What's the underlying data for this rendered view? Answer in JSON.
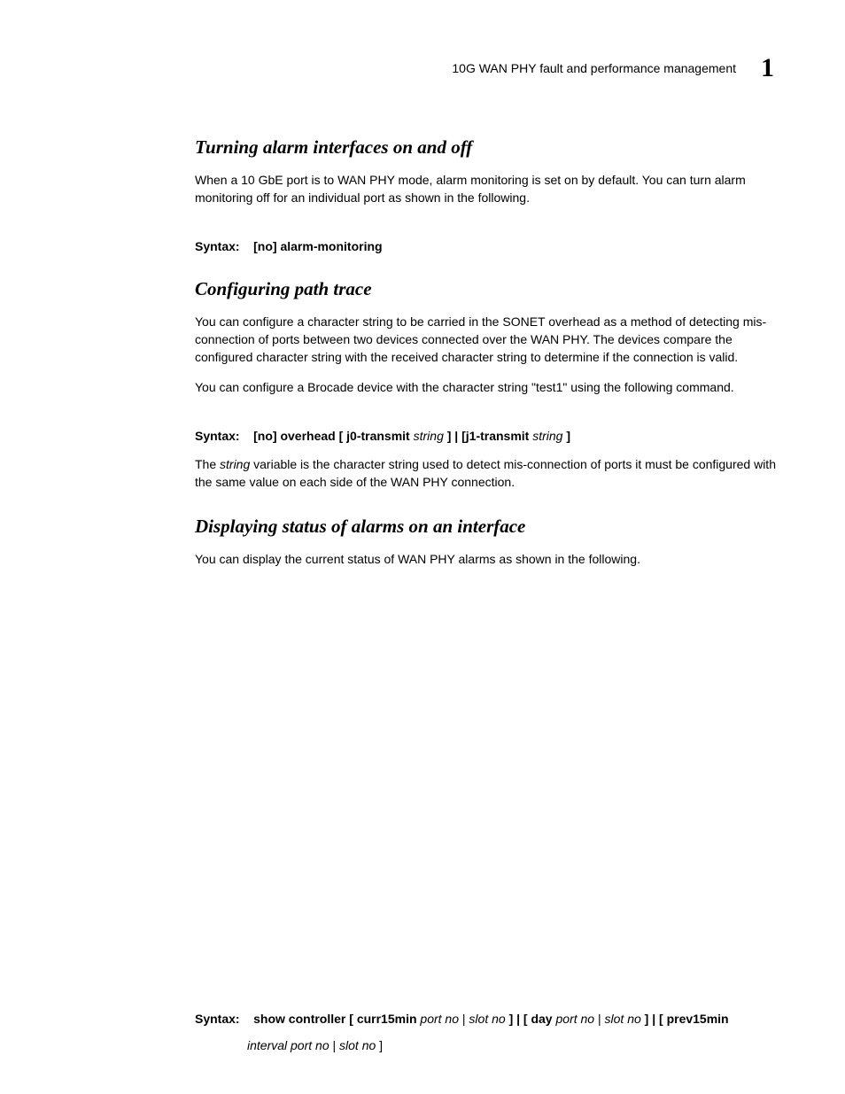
{
  "header": {
    "title": "10G WAN PHY fault and performance management",
    "chapter": "1"
  },
  "sections": {
    "turningAlarm": {
      "heading": "Turning alarm interfaces on and off",
      "paragraph": "When a 10 GbE port is to WAN PHY mode, alarm monitoring is set on by default. You can turn alarm monitoring off for an individual port as shown in the following.",
      "syntaxLabel": "Syntax:",
      "syntaxText": "[no] alarm-monitoring"
    },
    "configuringPath": {
      "heading": "Configuring path trace",
      "paragraph1": "You can configure a character string to be carried in the SONET overhead as a method of detecting mis-connection of ports between two devices connected over the WAN PHY. The devices compare the configured character string with the received character string to determine if the connection is valid.",
      "paragraph2": "You can configure a Brocade device with the character string \"test1\" using the following command.",
      "syntaxLabel": "Syntax:",
      "syntaxBold1": "[no] overhead [ j0-transmit",
      "syntaxItalic1": "string",
      "syntaxBold2": "] | [j1-transmit",
      "syntaxItalic2": "string",
      "syntaxBold3": "]",
      "paragraph3a": "The ",
      "paragraph3Italic": "string",
      "paragraph3b": " variable is the character string used to detect mis-connection of ports it must be configured with the same value on each side of the WAN PHY connection."
    },
    "displayingStatus": {
      "heading": "Displaying status of alarms on an interface",
      "paragraph": "You can display the current status of WAN PHY alarms as shown in the following.",
      "syntaxLabel": "Syntax:",
      "syntaxBold1": "show controller [ curr15min",
      "syntaxItalic1": "port no",
      "syntaxPipe1": " | ",
      "syntaxItalic2": "slot no",
      "syntaxBold2": "]  | [ day",
      "syntaxItalic3": "port no",
      "syntaxPipe2": " | ",
      "syntaxItalic4": "slot no",
      "syntaxBold3": "]  | [ prev15min",
      "syntaxCont1": "interval port no",
      "syntaxContPipe": " | ",
      "syntaxCont2": "slot no",
      "syntaxContBold": " ]"
    }
  }
}
